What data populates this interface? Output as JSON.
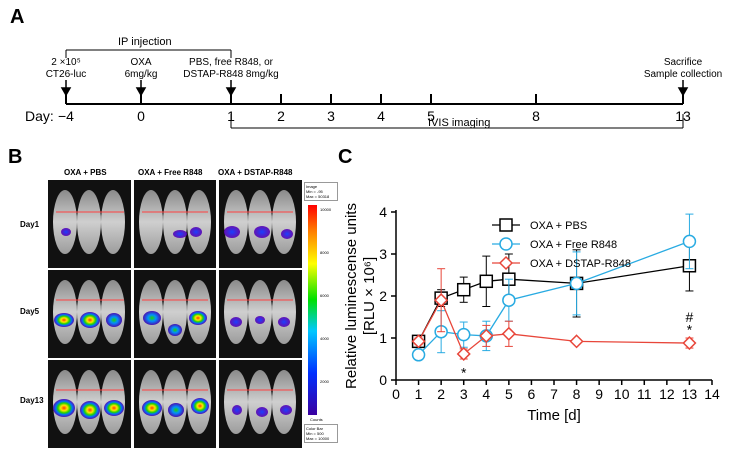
{
  "panelA": {
    "label": "A",
    "ip_injection": "IP injection",
    "events": [
      {
        "day": "-4",
        "lines": [
          "2 ×10⁵",
          "CT26-luc"
        ]
      },
      {
        "day": "0",
        "lines": [
          "OXA",
          "6mg/kg"
        ]
      },
      {
        "day": "1",
        "lines": [
          "PBS, free R848, or",
          "DSTAP-R848 8mg/kg"
        ]
      },
      {
        "day": "13",
        "lines": [
          "Sacrifice",
          "Sample collection"
        ]
      }
    ],
    "day_prefix": "Day:",
    "day_ticks": [
      "−4",
      "0",
      "1",
      "2",
      "3",
      "4",
      "5",
      "8",
      "13"
    ],
    "ivis": "IVIS imaging"
  },
  "panelB": {
    "label": "B",
    "conditions": [
      "OXA + PBS",
      "OXA + Free R848",
      "OXA + DSTAP-R848"
    ],
    "days": [
      "Day1",
      "Day5",
      "Day13"
    ],
    "image_box": [
      "Image",
      "Min = -95",
      "Max = 50318"
    ],
    "colorbar_ticks": [
      "10000",
      "8000",
      "6000",
      "4000",
      "2000"
    ],
    "colorbar_unit": "Counts",
    "colorbar_box": [
      "Color Bar",
      "Min = 500",
      "Max = 10000"
    ]
  },
  "panelC": {
    "label": "C",
    "chart_data": {
      "type": "line",
      "ylabel_line1": "Relative luminescense units",
      "ylabel_line2": "[RLU × 10⁶]",
      "xlabel": "Time [d]",
      "xlim": [
        0,
        14
      ],
      "ylim": [
        0,
        4
      ],
      "xticks": [
        "0",
        "1",
        "2",
        "3",
        "4",
        "5",
        "6",
        "7",
        "8",
        "9",
        "10",
        "11",
        "12",
        "13",
        "14"
      ],
      "yticks": [
        "0",
        "1",
        "2",
        "3",
        "4"
      ],
      "series": [
        {
          "name": "OXA + PBS",
          "color": "#000000",
          "marker": "square",
          "x": [
            1,
            2,
            3,
            4,
            5,
            8,
            13
          ],
          "y": [
            0.92,
            1.95,
            2.15,
            2.35,
            2.4,
            2.3,
            2.72
          ],
          "err": [
            0.1,
            0.2,
            0.3,
            0.6,
            0.6,
            0.8,
            0.6
          ]
        },
        {
          "name": "OXA + Free R848",
          "color": "#29abe2",
          "marker": "circle",
          "x": [
            1,
            2,
            3,
            4,
            5,
            8,
            13
          ],
          "y": [
            0.6,
            1.15,
            1.08,
            1.05,
            1.9,
            2.3,
            3.3
          ],
          "err": [
            0.1,
            0.5,
            0.3,
            0.35,
            0.5,
            0.75,
            0.65
          ]
        },
        {
          "name": "OXA + DSTAP-R848",
          "color": "#e8463a",
          "marker": "diamond",
          "x": [
            1,
            2,
            3,
            4,
            5,
            8,
            13
          ],
          "y": [
            0.92,
            1.9,
            0.62,
            1.05,
            1.1,
            0.92,
            0.88
          ],
          "err": [
            0.08,
            0.75,
            0.12,
            0.25,
            0.3,
            0.06,
            0.12
          ]
        }
      ],
      "annotations": [
        {
          "x": 3,
          "y": 0.18,
          "text": "*"
        },
        {
          "x": 13,
          "y": 1.5,
          "text": "#"
        },
        {
          "x": 13,
          "y": 1.2,
          "text": "*"
        }
      ]
    }
  }
}
